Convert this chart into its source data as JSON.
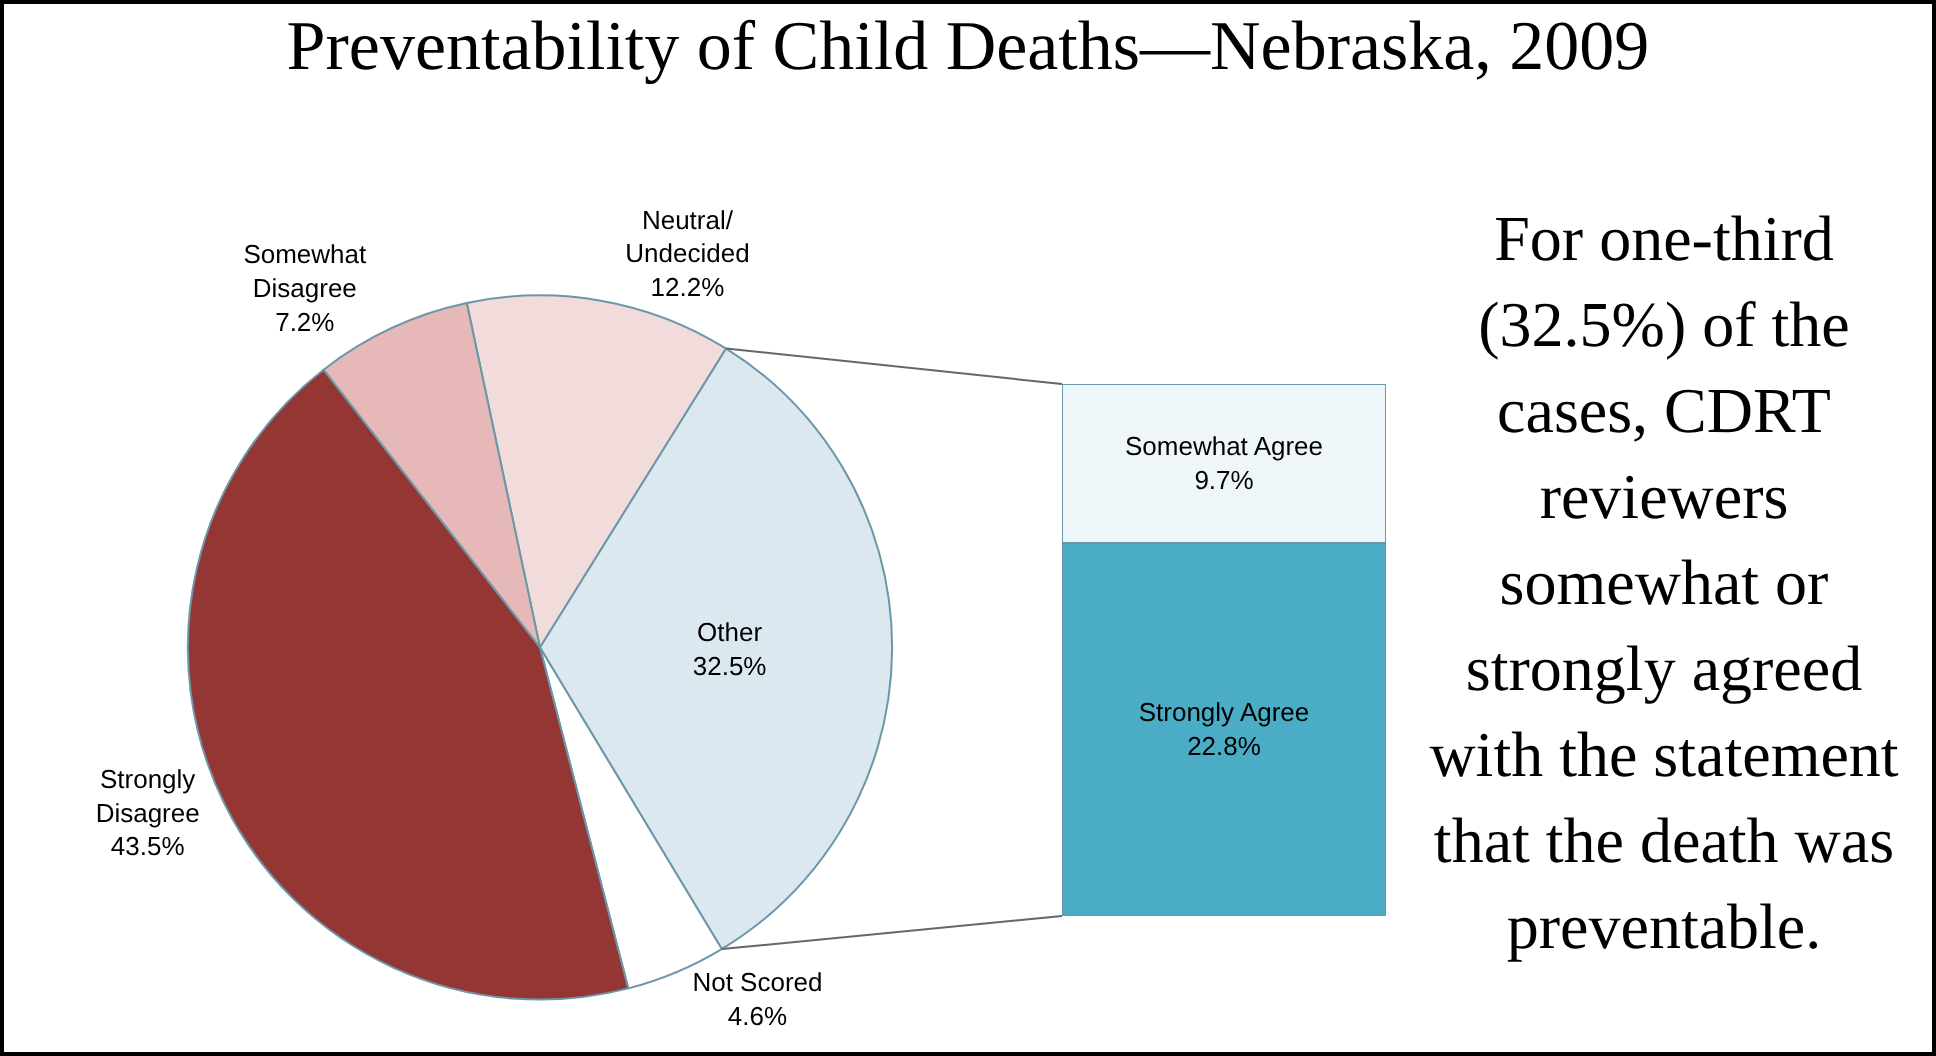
{
  "chart_data": [
    {
      "type": "pie",
      "title": "Preventability of Child Deaths—Nebraska, 2009",
      "categories": [
        "Neutral/Undecided",
        "Other",
        "Not Scored",
        "Strongly Disagree",
        "Somewhat Disagree"
      ],
      "values": [
        12.2,
        32.5,
        4.6,
        43.5,
        7.2
      ],
      "value_labels": [
        "12.2%",
        "32.5%",
        "4.6%",
        "43.5%",
        "7.2%"
      ],
      "colors": [
        "#f2dcdb",
        "#dbe8ef",
        "#ffffff",
        "#943634",
        "#e6b9b8"
      ],
      "annotations": [
        "For one-third (32.5%) of the cases, CDRT reviewers somewhat or strongly agreed with the statement that the death was preventable."
      ],
      "legend": false
    },
    {
      "type": "bar",
      "stacked": true,
      "categories": [
        null
      ],
      "series": [
        {
          "name": "Strongly Agree",
          "color": "#4bacc6",
          "values": [
            22.8
          ],
          "value_labels": [
            "22.8%"
          ]
        },
        {
          "name": "Somewhat Agree",
          "color": "#eef6f9",
          "values": [
            9.7
          ],
          "value_labels": [
            "9.7%"
          ]
        }
      ],
      "ylim": [
        0,
        32.5
      ],
      "legend": false
    }
  ]
}
